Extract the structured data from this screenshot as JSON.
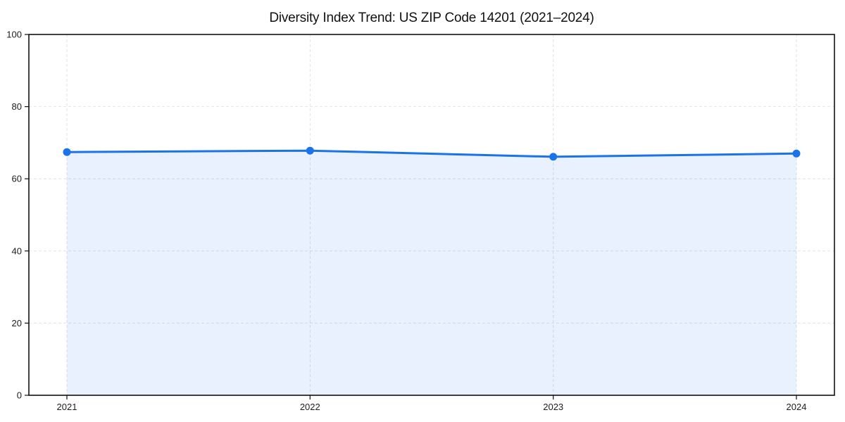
{
  "chart_data": {
    "type": "area",
    "title": "Diversity Index Trend: US ZIP Code 14201 (2021–2024)",
    "categories": [
      "2021",
      "2022",
      "2023",
      "2024"
    ],
    "series": [
      {
        "name": "Diversity Index",
        "values": [
          67.4,
          67.8,
          66.1,
          67.0
        ]
      }
    ],
    "xlabel": "",
    "ylabel": "",
    "ylim": [
      0,
      100
    ],
    "yticks": [
      0,
      20,
      40,
      60,
      80,
      100
    ],
    "grid": "dashed",
    "legend_position": "none",
    "colors": {
      "line": "#1a73e8",
      "marker": "#1a73e8",
      "fill": "rgba(26,115,232,0.10)",
      "grid": "#e2e2e2",
      "spine": "#111111",
      "tick_label": "#1c1c1c",
      "title": "#111111",
      "background": "#ffffff"
    }
  }
}
